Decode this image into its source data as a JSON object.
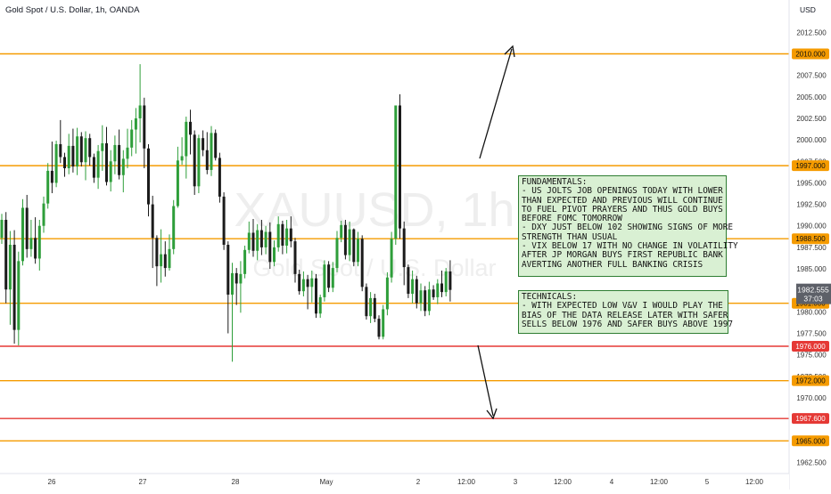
{
  "header": {
    "title": "Gold Spot / U.S. Dollar, 1h, OANDA",
    "currency": "USD"
  },
  "watermark": {
    "symbol": "XAUUSD, 1h",
    "name": "Gold Spot / U.S. Dollar"
  },
  "colors": {
    "up": "#26a69a",
    "up_candle": "#2e9e3a",
    "down": "#1b1b1b",
    "level_orange": "#f59b00",
    "level_red": "#e53935",
    "note_bg": "#d9f0d3",
    "note_border": "#2e7d32"
  },
  "chart_data": {
    "type": "candlestick",
    "y_axis": {
      "range": [
        1961.2,
        2014.4
      ],
      "ticks": [
        "2012.500",
        "2010.000",
        "2007.500",
        "2005.000",
        "2002.500",
        "2000.000",
        "1997.500",
        "1995.000",
        "1992.500",
        "1990.000",
        "1987.500",
        "1985.000",
        "1982.500",
        "1980.000",
        "1977.500",
        "1975.000",
        "1972.500",
        "1970.000",
        "1967.500",
        "1965.000",
        "1962.500"
      ]
    },
    "x_axis": {
      "labels": [
        "26",
        "27",
        "28",
        "May",
        "2",
        "12:00",
        "3",
        "12:00",
        "4",
        "12:00",
        "5",
        "12:00"
      ]
    },
    "last_price": {
      "label": "1982.555",
      "countdown": "37:03",
      "value": 1982.555
    },
    "levels": [
      {
        "label": "2010.000",
        "value": 2010.0,
        "color": "orange"
      },
      {
        "label": "1997.000",
        "value": 1997.0,
        "color": "orange"
      },
      {
        "label": "1988.500",
        "value": 1988.5,
        "color": "orange"
      },
      {
        "label": "1981.000",
        "value": 1981.0,
        "color": "orange"
      },
      {
        "label": "1976.000",
        "value": 1976.0,
        "color": "red"
      },
      {
        "label": "1972.000",
        "value": 1972.0,
        "color": "orange"
      },
      {
        "label": "1967.600",
        "value": 1967.6,
        "color": "red"
      },
      {
        "label": "1965.000",
        "value": 1965.0,
        "color": "orange"
      }
    ],
    "candles": [
      [
        1988.6,
        1991.4,
        1987.9,
        1990.7
      ],
      [
        1990.7,
        1991.6,
        1981.0,
        1982.6
      ],
      [
        1982.6,
        1989.4,
        1978.5,
        1987.8
      ],
      [
        1987.8,
        1989.5,
        1976.3,
        1977.9
      ],
      [
        1977.9,
        1987.0,
        1976.1,
        1985.9
      ],
      [
        1985.9,
        1993.1,
        1985.4,
        1992.1
      ],
      [
        1992.1,
        1993.6,
        1986.3,
        1987.3
      ],
      [
        1987.3,
        1990.7,
        1986.4,
        1988.6
      ],
      [
        1988.6,
        1991.0,
        1985.6,
        1986.2
      ],
      [
        1986.2,
        1990.7,
        1984.8,
        1990.0
      ],
      [
        1990.0,
        1993.4,
        1989.2,
        1992.6
      ],
      [
        1992.6,
        1997.3,
        1992.0,
        1996.4
      ],
      [
        1996.4,
        1999.8,
        1993.8,
        1995.0
      ],
      [
        1995.0,
        1999.9,
        1994.5,
        1999.5
      ],
      [
        1999.5,
        2002.3,
        1997.3,
        1998.0
      ],
      [
        1998.0,
        1998.5,
        1995.7,
        1996.7
      ],
      [
        1996.7,
        2000.7,
        1996.0,
        1999.3
      ],
      [
        1999.3,
        2001.3,
        1996.2,
        1996.9
      ],
      [
        1996.9,
        2001.4,
        1995.9,
        2000.4
      ],
      [
        2000.4,
        2000.9,
        1996.9,
        1997.4
      ],
      [
        1997.4,
        2001.0,
        1995.3,
        2000.2
      ],
      [
        2000.2,
        2000.7,
        1997.0,
        1998.0
      ],
      [
        1998.0,
        1998.4,
        1995.0,
        1995.6
      ],
      [
        1995.6,
        1999.4,
        1994.3,
        1998.7
      ],
      [
        1998.7,
        2001.7,
        1996.4,
        1999.6
      ],
      [
        1999.6,
        2001.5,
        1994.7,
        1995.1
      ],
      [
        1995.1,
        1998.8,
        1994.0,
        1997.5
      ],
      [
        1997.5,
        2000.5,
        1996.0,
        1999.4
      ],
      [
        1999.4,
        2001.2,
        1995.4,
        1995.9
      ],
      [
        1995.9,
        1998.8,
        1993.9,
        1997.8
      ],
      [
        1997.8,
        2001.3,
        1996.7,
        1999.1
      ],
      [
        1999.1,
        2002.3,
        1998.1,
        2001.2
      ],
      [
        2001.2,
        2003.7,
        1998.4,
        2002.5
      ],
      [
        2002.5,
        2008.8,
        1999.7,
        2004.0
      ],
      [
        2004.0,
        2004.9,
        1996.7,
        1999.0
      ],
      [
        1999.0,
        1999.5,
        1991.1,
        1992.5
      ],
      [
        1992.5,
        1993.5,
        1985.1,
        1988.6
      ],
      [
        1988.6,
        1988.9,
        1983.0,
        1985.3
      ],
      [
        1985.3,
        1989.6,
        1983.4,
        1986.7
      ],
      [
        1986.7,
        1988.2,
        1984.1,
        1985.1
      ],
      [
        1985.1,
        1989.0,
        1984.8,
        1987.3
      ],
      [
        1987.3,
        1993.0,
        1986.7,
        1992.3
      ],
      [
        1992.3,
        1999.2,
        1992.1,
        1997.6
      ],
      [
        1997.6,
        2000.3,
        1997.1,
        1998.1
      ],
      [
        1998.1,
        2002.7,
        1995.5,
        2002.1
      ],
      [
        2002.1,
        2003.5,
        1998.3,
        2000.6
      ],
      [
        2000.6,
        2001.1,
        1993.6,
        1994.6
      ],
      [
        1994.6,
        2000.6,
        1993.8,
        2000.2
      ],
      [
        2000.2,
        2001.1,
        1998.1,
        1998.8
      ],
      [
        1998.8,
        2000.9,
        1996.0,
        1996.5
      ],
      [
        1996.5,
        2001.6,
        1995.8,
        2000.8
      ],
      [
        2000.8,
        2001.2,
        1997.6,
        1997.9
      ],
      [
        1997.9,
        1998.5,
        1992.7,
        1993.4
      ],
      [
        1993.4,
        1993.9,
        1987.2,
        1987.8
      ],
      [
        1987.8,
        1988.2,
        1977.5,
        1982.0
      ],
      [
        1982.0,
        1985.7,
        1974.2,
        1984.5
      ],
      [
        1984.5,
        1985.1,
        1980.8,
        1983.3
      ],
      [
        1983.3,
        1985.9,
        1979.9,
        1984.4
      ],
      [
        1984.4,
        1987.7,
        1983.9,
        1987.2
      ],
      [
        1987.2,
        1990.5,
        1986.8,
        1989.2
      ],
      [
        1989.2,
        1990.8,
        1986.4,
        1987.1
      ],
      [
        1987.1,
        1990.2,
        1986.0,
        1989.5
      ],
      [
        1989.5,
        1990.7,
        1986.6,
        1987.5
      ],
      [
        1987.5,
        1990.0,
        1986.7,
        1989.3
      ],
      [
        1989.3,
        1990.4,
        1985.0,
        1985.8
      ],
      [
        1985.8,
        1988.3,
        1985.3,
        1987.5
      ],
      [
        1987.5,
        1991.1,
        1987.0,
        1990.2
      ],
      [
        1990.2,
        1990.6,
        1986.7,
        1987.7
      ],
      [
        1987.7,
        1990.7,
        1986.8,
        1989.7
      ],
      [
        1989.7,
        1991.1,
        1987.5,
        1988.2
      ],
      [
        1988.2,
        1988.6,
        1983.4,
        1984.4
      ],
      [
        1984.4,
        1984.9,
        1982.0,
        1982.4
      ],
      [
        1982.4,
        1984.7,
        1981.8,
        1983.8
      ],
      [
        1983.8,
        1984.3,
        1980.3,
        1982.9
      ],
      [
        1982.9,
        1984.8,
        1981.1,
        1983.9
      ],
      [
        1983.9,
        1984.4,
        1979.3,
        1979.8
      ],
      [
        1979.8,
        1982.0,
        1979.3,
        1981.7
      ],
      [
        1981.7,
        1986.0,
        1981.2,
        1985.5
      ],
      [
        1985.5,
        1985.9,
        1982.3,
        1982.8
      ],
      [
        1982.8,
        1985.8,
        1982.3,
        1985.1
      ],
      [
        1985.1,
        1989.4,
        1984.6,
        1988.6
      ],
      [
        1988.6,
        1990.6,
        1988.1,
        1990.1
      ],
      [
        1990.1,
        1990.7,
        1986.1,
        1986.6
      ],
      [
        1986.6,
        1990.5,
        1985.9,
        1989.6
      ],
      [
        1989.6,
        1989.7,
        1985.3,
        1985.8
      ],
      [
        1985.8,
        1989.3,
        1985.3,
        1988.5
      ],
      [
        1988.5,
        1988.9,
        1982.4,
        1982.9
      ],
      [
        1982.9,
        1983.3,
        1979.1,
        1979.5
      ],
      [
        1979.5,
        1982.3,
        1978.7,
        1981.6
      ],
      [
        1981.6,
        1982.1,
        1978.8,
        1979.2
      ],
      [
        1979.2,
        1979.6,
        1976.8,
        1977.1
      ],
      [
        1977.1,
        1980.8,
        1976.8,
        1980.3
      ],
      [
        1980.3,
        1984.6,
        1979.6,
        1984.0
      ],
      [
        1984.0,
        1989.3,
        1983.4,
        1988.5
      ],
      [
        1988.5,
        2003.9,
        1987.8,
        2004.0
      ],
      [
        2004.0,
        2005.3,
        1988.5,
        1989.7
      ],
      [
        1989.7,
        1990.5,
        1983.1,
        1985.2
      ],
      [
        1985.2,
        1985.5,
        1981.6,
        1982.1
      ],
      [
        1982.1,
        1984.8,
        1981.0,
        1983.8
      ],
      [
        1983.8,
        1984.2,
        1980.4,
        1981.0
      ],
      [
        1981.0,
        1983.3,
        1980.1,
        1982.5
      ],
      [
        1982.5,
        1983.0,
        1979.5,
        1980.1
      ],
      [
        1980.1,
        1983.5,
        1979.6,
        1982.6
      ],
      [
        1982.6,
        1983.1,
        1981.4,
        1981.7
      ],
      [
        1981.7,
        1983.8,
        1980.9,
        1983.3
      ],
      [
        1983.3,
        1984.8,
        1981.7,
        1982.3
      ],
      [
        1982.3,
        1985.1,
        1981.8,
        1984.7
      ],
      [
        1984.7,
        1986.0,
        1981.2,
        1982.555
      ]
    ]
  },
  "annotations": {
    "fundamentals": [
      "FUNDAMENTALS:",
      "- US JOLTS JOB OPENINGS TODAY WITH LOWER",
      "THAN EXPECTED AND PREVIOUS WILL CONTINUE",
      "TO FUEL PIVOT PRAYERS AND THUS GOLD BUYS",
      "BEFORE FOMC TOMORROW",
      "- DXY JUST BELOW 102 SHOWING SIGNS OF MORE",
      "STRENGTH THAN USUAL",
      "- VIX BELOW 17 WITH NO CHANGE IN VOLATILITY",
      "AFTER JP MORGAN BUYS FIRST REPUBLIC BANK",
      "AVERTING ANOTHER FULL BANKING CRISIS"
    ],
    "technicals": [
      "TECHNICALS:",
      "- WITH EXPECTED LOW V&V I WOULD PLAY THE",
      "BIAS OF THE DATA RELEASE LATER WITH SAFER",
      "SELLS BELOW 1976 AND SAFER BUYS ABOVE 1997"
    ]
  }
}
